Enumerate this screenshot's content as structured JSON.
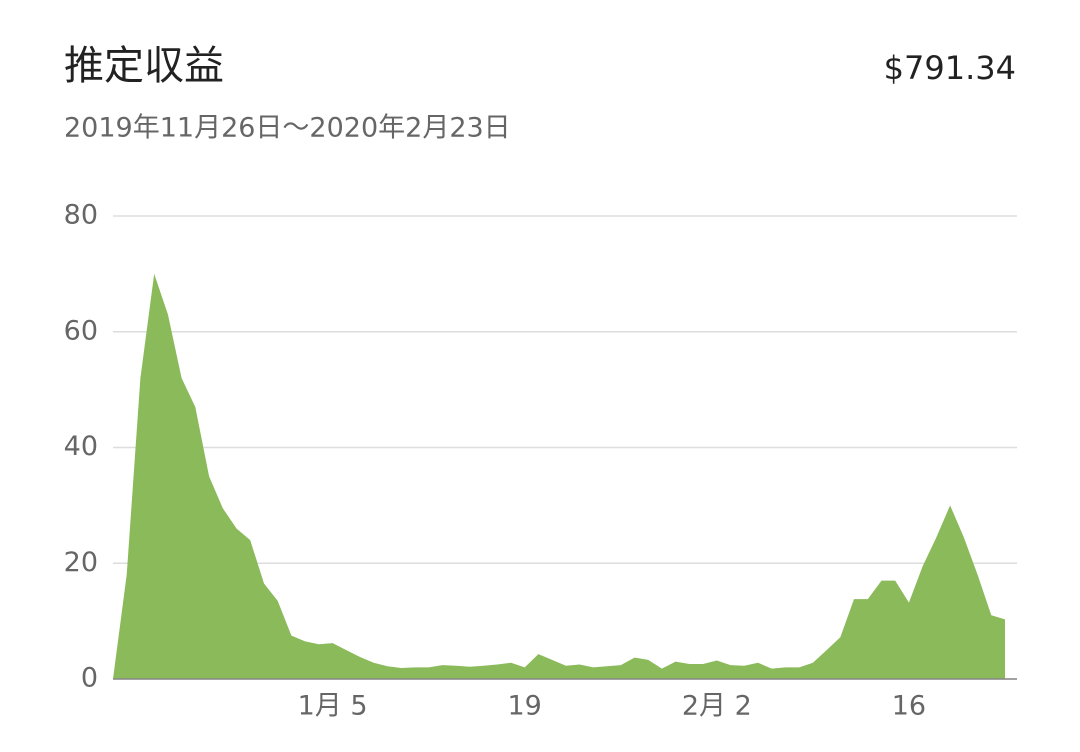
{
  "chart_data": {
    "type": "area",
    "title": "推定収益",
    "total": "$791.34",
    "subtitle": "2019年11月26日〜2020年2月23日",
    "categories": [
      null,
      null,
      null,
      null,
      null,
      null,
      null,
      null,
      null,
      null,
      null,
      null,
      null,
      null,
      null,
      null,
      "1月 5",
      null,
      null,
      null,
      null,
      null,
      null,
      null,
      null,
      null,
      null,
      null,
      null,
      null,
      "19",
      null,
      null,
      null,
      null,
      null,
      null,
      null,
      null,
      null,
      null,
      null,
      null,
      null,
      "2月 2",
      null,
      null,
      null,
      null,
      null,
      null,
      null,
      null,
      null,
      null,
      null,
      null,
      null,
      "16",
      null,
      null,
      null,
      null,
      null,
      null,
      null
    ],
    "values": [
      0,
      18,
      52,
      70,
      63,
      52,
      47,
      35,
      29.5,
      26,
      24,
      16.5,
      13.5,
      7.5,
      6.5,
      6,
      6.2,
      5,
      3.8,
      2.8,
      2.2,
      1.9,
      2,
      2,
      2.4,
      2.3,
      2.1,
      2.3,
      2.5,
      2.8,
      2,
      4.3,
      3.3,
      2.3,
      2.5,
      2,
      2.2,
      2.4,
      3.7,
      3.3,
      1.8,
      3,
      2.6,
      2.6,
      3.2,
      2.4,
      2.3,
      2.8,
      1.8,
      2,
      2,
      2.8,
      5,
      7.2,
      13.8,
      13.8,
      17,
      17,
      13.2,
      19.5,
      24.5,
      30,
      24.5,
      18,
      11,
      10.3
    ],
    "color": "#8aba5a",
    "ylim": [
      0,
      80
    ],
    "yticks": [
      0,
      20,
      40,
      60,
      80
    ],
    "grid": true
  }
}
